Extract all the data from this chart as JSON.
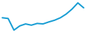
{
  "values": [
    9.5,
    9.2,
    4.5,
    6.2,
    7.0,
    6.5,
    7.2,
    7.0,
    7.8,
    8.5,
    9.5,
    11.0,
    13.0,
    15.5,
    13.5
  ],
  "line_color": "#1a9ed4",
  "linewidth": 1.5,
  "background_color": "#ffffff"
}
